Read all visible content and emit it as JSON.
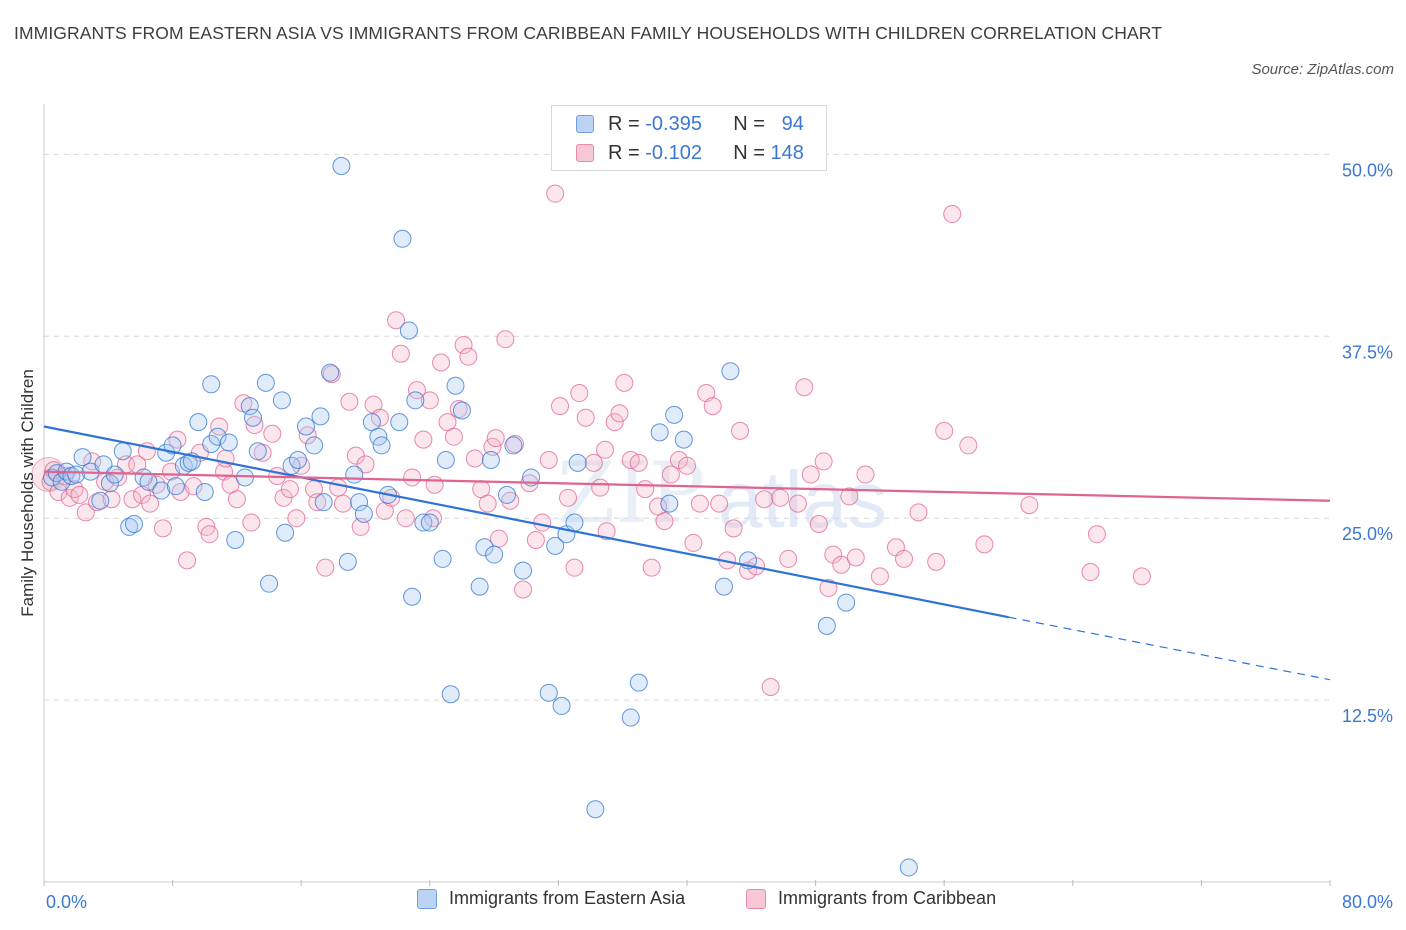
{
  "header": {
    "title": "IMMIGRANTS FROM EASTERN ASIA VS IMMIGRANTS FROM CARIBBEAN FAMILY HOUSEHOLDS WITH CHILDREN CORRELATION CHART",
    "source": "Source: ZipAtlas.com"
  },
  "colors": {
    "blue": "#2f74d4",
    "blue_fill": "#aac8f2",
    "pink": "#e0648e",
    "pink_fill": "#f4b6ca",
    "axis_text": "#3b78d4",
    "grid": "#d8d8d8"
  },
  "legend": {
    "r_label": "R =",
    "n_label": "N =",
    "rows": [
      {
        "r": "-0.395",
        "n": "94"
      },
      {
        "r": "-0.102",
        "n": "148"
      }
    ]
  },
  "chart_data": {
    "type": "scatter",
    "title": "IMMIGRANTS FROM EASTERN ASIA VS IMMIGRANTS FROM CARIBBEAN FAMILY HOUSEHOLDS WITH CHILDREN CORRELATION CHART",
    "xlabel": "",
    "ylabel": "Family Households with Children",
    "xlim": [
      0,
      80
    ],
    "ylim": [
      0,
      52.5
    ],
    "x_tick_labels": [
      "0.0%",
      "80.0%"
    ],
    "y_ticks": [
      12.5,
      25.0,
      37.5,
      50.0
    ],
    "y_tick_labels": [
      "12.5%",
      "25.0%",
      "37.5%",
      "50.0%"
    ],
    "grid": "horizontal dashed",
    "legend_position": "top-center",
    "watermark": "ZIPatlas",
    "series": [
      {
        "name": "Immigrants from Eastern Asia",
        "R": -0.395,
        "N": 94,
        "trend": {
          "x0": 0,
          "y0": 31.3,
          "x1": 60,
          "y1": 18.2,
          "dash_to_x": 80,
          "dash_to_y": 13.9
        },
        "points": [
          [
            0.5,
            27.8
          ],
          [
            0.8,
            28.1
          ],
          [
            1.1,
            27.5
          ],
          [
            1.4,
            28.2
          ],
          [
            1.7,
            27.9
          ],
          [
            2.0,
            28.0
          ],
          [
            2.4,
            29.2
          ],
          [
            2.9,
            28.2
          ],
          [
            3.5,
            26.2
          ],
          [
            3.7,
            28.7
          ],
          [
            4.1,
            27.4
          ],
          [
            4.4,
            28.0
          ],
          [
            4.9,
            29.6
          ],
          [
            5.3,
            24.4
          ],
          [
            5.6,
            24.6
          ],
          [
            6.2,
            27.8
          ],
          [
            6.5,
            27.5
          ],
          [
            7.3,
            26.9
          ],
          [
            7.6,
            29.5
          ],
          [
            8.0,
            30.0
          ],
          [
            8.2,
            27.2
          ],
          [
            8.7,
            28.6
          ],
          [
            9.0,
            28.8
          ],
          [
            9.2,
            28.9
          ],
          [
            9.6,
            31.6
          ],
          [
            10.0,
            26.8
          ],
          [
            10.4,
            30.1
          ],
          [
            10.4,
            34.2
          ],
          [
            10.8,
            30.6
          ],
          [
            11.5,
            30.2
          ],
          [
            11.9,
            23.5
          ],
          [
            12.5,
            27.8
          ],
          [
            12.8,
            32.7
          ],
          [
            13.0,
            31.9
          ],
          [
            13.3,
            29.6
          ],
          [
            13.8,
            34.3
          ],
          [
            14.0,
            20.5
          ],
          [
            14.8,
            33.1
          ],
          [
            15.0,
            24.0
          ],
          [
            15.4,
            28.6
          ],
          [
            15.8,
            29.0
          ],
          [
            16.3,
            31.3
          ],
          [
            16.8,
            30.0
          ],
          [
            17.2,
            32.0
          ],
          [
            17.4,
            26.1
          ],
          [
            17.8,
            35.0
          ],
          [
            18.5,
            49.2
          ],
          [
            18.9,
            22.0
          ],
          [
            19.3,
            28.0
          ],
          [
            19.6,
            26.1
          ],
          [
            19.9,
            25.3
          ],
          [
            20.4,
            31.6
          ],
          [
            20.8,
            30.6
          ],
          [
            21.0,
            30.0
          ],
          [
            21.4,
            26.6
          ],
          [
            22.1,
            31.6
          ],
          [
            22.3,
            44.2
          ],
          [
            22.7,
            37.9
          ],
          [
            22.9,
            19.6
          ],
          [
            23.1,
            33.1
          ],
          [
            23.6,
            24.7
          ],
          [
            24.0,
            24.7
          ],
          [
            24.8,
            22.2
          ],
          [
            25.0,
            29.0
          ],
          [
            25.3,
            12.9
          ],
          [
            25.6,
            34.1
          ],
          [
            26.0,
            32.4
          ],
          [
            27.1,
            20.3
          ],
          [
            27.4,
            23.0
          ],
          [
            27.8,
            29.0
          ],
          [
            28.0,
            22.5
          ],
          [
            28.8,
            26.6
          ],
          [
            29.2,
            30.0
          ],
          [
            29.8,
            21.4
          ],
          [
            30.3,
            27.8
          ],
          [
            31.4,
            13.0
          ],
          [
            31.8,
            23.1
          ],
          [
            32.2,
            12.1
          ],
          [
            32.5,
            23.9
          ],
          [
            33.0,
            24.7
          ],
          [
            33.2,
            28.8
          ],
          [
            34.3,
            5.0
          ],
          [
            36.5,
            11.3
          ],
          [
            37.0,
            13.7
          ],
          [
            38.9,
            26.0
          ],
          [
            39.2,
            32.1
          ],
          [
            39.8,
            30.4
          ],
          [
            42.3,
            20.3
          ],
          [
            42.7,
            35.1
          ],
          [
            48.7,
            17.6
          ],
          [
            49.9,
            19.2
          ],
          [
            53.8,
            1.0
          ],
          [
            38.3,
            30.9
          ],
          [
            43.8,
            22.1
          ]
        ]
      },
      {
        "name": "Immigrants from Caribbean",
        "R": -0.102,
        "N": 148,
        "trend": {
          "x0": 0,
          "y0": 28.2,
          "x1": 80,
          "y1": 26.2
        },
        "points": [
          [
            0.4,
            27.5
          ],
          [
            0.9,
            26.8
          ],
          [
            1.3,
            27.9
          ],
          [
            1.6,
            26.4
          ],
          [
            1.9,
            27.0
          ],
          [
            2.2,
            26.6
          ],
          [
            2.6,
            25.4
          ],
          [
            3.0,
            28.9
          ],
          [
            3.3,
            26.1
          ],
          [
            3.8,
            27.5
          ],
          [
            4.2,
            26.3
          ],
          [
            4.6,
            27.8
          ],
          [
            5.1,
            28.7
          ],
          [
            5.5,
            26.3
          ],
          [
            5.8,
            28.7
          ],
          [
            6.1,
            26.6
          ],
          [
            6.6,
            26.0
          ],
          [
            7.0,
            27.3
          ],
          [
            7.4,
            24.3
          ],
          [
            7.9,
            28.2
          ],
          [
            8.3,
            30.4
          ],
          [
            8.5,
            26.8
          ],
          [
            8.9,
            22.1
          ],
          [
            9.3,
            27.2
          ],
          [
            9.7,
            29.5
          ],
          [
            10.1,
            24.4
          ],
          [
            10.3,
            23.9
          ],
          [
            10.9,
            31.3
          ],
          [
            11.2,
            28.2
          ],
          [
            11.6,
            27.3
          ],
          [
            12.0,
            26.3
          ],
          [
            12.4,
            32.9
          ],
          [
            12.9,
            24.7
          ],
          [
            13.1,
            31.4
          ],
          [
            13.6,
            29.5
          ],
          [
            14.2,
            30.8
          ],
          [
            14.5,
            27.9
          ],
          [
            14.9,
            26.4
          ],
          [
            15.3,
            27.0
          ],
          [
            15.7,
            25.0
          ],
          [
            16.0,
            28.6
          ],
          [
            16.4,
            30.7
          ],
          [
            16.8,
            27.0
          ],
          [
            17.0,
            26.1
          ],
          [
            17.5,
            21.6
          ],
          [
            17.9,
            34.9
          ],
          [
            18.3,
            27.1
          ],
          [
            18.6,
            26.0
          ],
          [
            19.0,
            33.0
          ],
          [
            19.4,
            29.3
          ],
          [
            19.7,
            24.4
          ],
          [
            20.0,
            28.7
          ],
          [
            20.5,
            32.8
          ],
          [
            20.9,
            31.9
          ],
          [
            21.2,
            25.5
          ],
          [
            21.6,
            26.4
          ],
          [
            21.9,
            38.6
          ],
          [
            22.2,
            36.3
          ],
          [
            22.5,
            25.0
          ],
          [
            22.9,
            27.8
          ],
          [
            23.2,
            33.8
          ],
          [
            23.6,
            30.4
          ],
          [
            24.0,
            33.1
          ],
          [
            24.3,
            27.3
          ],
          [
            24.7,
            35.7
          ],
          [
            25.1,
            31.6
          ],
          [
            25.5,
            30.6
          ],
          [
            25.8,
            32.5
          ],
          [
            26.1,
            36.9
          ],
          [
            26.4,
            36.1
          ],
          [
            26.8,
            29.1
          ],
          [
            27.2,
            27.0
          ],
          [
            27.6,
            26.0
          ],
          [
            27.9,
            29.9
          ],
          [
            28.3,
            23.6
          ],
          [
            28.7,
            37.3
          ],
          [
            29.0,
            26.2
          ],
          [
            29.3,
            30.1
          ],
          [
            29.8,
            20.1
          ],
          [
            30.2,
            27.4
          ],
          [
            30.6,
            23.5
          ],
          [
            31.0,
            24.7
          ],
          [
            31.4,
            29.0
          ],
          [
            31.8,
            47.3
          ],
          [
            32.1,
            32.7
          ],
          [
            32.6,
            26.4
          ],
          [
            33.0,
            21.6
          ],
          [
            33.3,
            33.6
          ],
          [
            33.7,
            31.9
          ],
          [
            34.2,
            28.8
          ],
          [
            34.6,
            27.1
          ],
          [
            35.0,
            24.1
          ],
          [
            35.5,
            31.6
          ],
          [
            35.8,
            32.2
          ],
          [
            36.1,
            34.3
          ],
          [
            36.5,
            29.0
          ],
          [
            37.0,
            28.8
          ],
          [
            37.4,
            27.0
          ],
          [
            37.8,
            21.6
          ],
          [
            38.2,
            25.8
          ],
          [
            38.6,
            24.8
          ],
          [
            39.0,
            28.0
          ],
          [
            39.5,
            29.0
          ],
          [
            40.0,
            28.6
          ],
          [
            40.4,
            23.3
          ],
          [
            40.8,
            26.0
          ],
          [
            41.2,
            33.6
          ],
          [
            41.6,
            32.7
          ],
          [
            42.0,
            26.0
          ],
          [
            42.5,
            22.1
          ],
          [
            42.9,
            24.3
          ],
          [
            43.3,
            31.0
          ],
          [
            43.8,
            21.4
          ],
          [
            44.3,
            21.7
          ],
          [
            44.8,
            26.3
          ],
          [
            45.2,
            13.4
          ],
          [
            45.8,
            26.4
          ],
          [
            46.3,
            22.2
          ],
          [
            46.9,
            26.0
          ],
          [
            47.3,
            34.0
          ],
          [
            47.7,
            28.0
          ],
          [
            48.2,
            24.6
          ],
          [
            48.5,
            28.9
          ],
          [
            48.8,
            20.2
          ],
          [
            49.1,
            22.5
          ],
          [
            49.6,
            21.8
          ],
          [
            50.1,
            26.5
          ],
          [
            50.5,
            22.3
          ],
          [
            51.1,
            28.0
          ],
          [
            52.0,
            21.0
          ],
          [
            53.0,
            23.0
          ],
          [
            53.5,
            22.2
          ],
          [
            54.4,
            25.4
          ],
          [
            55.5,
            22.0
          ],
          [
            56.0,
            31.0
          ],
          [
            56.5,
            45.9
          ],
          [
            57.5,
            30.0
          ],
          [
            58.5,
            23.2
          ],
          [
            61.3,
            25.9
          ],
          [
            65.1,
            21.3
          ],
          [
            65.5,
            23.9
          ],
          [
            68.3,
            21.0
          ],
          [
            11.3,
            29.1
          ],
          [
            6.4,
            29.6
          ],
          [
            28.1,
            30.5
          ],
          [
            24.2,
            25.0
          ],
          [
            34.9,
            29.7
          ],
          [
            0.6,
            28.3
          ]
        ]
      }
    ]
  },
  "bottom_legend": [
    {
      "label": "Immigrants from Eastern Asia"
    },
    {
      "label": "Immigrants from Caribbean"
    }
  ]
}
